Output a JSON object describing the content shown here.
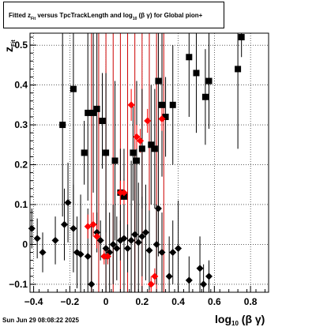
{
  "title": {
    "prefix": "Fitted  z",
    "sub_fit": "Fit",
    "mid": "  versus TpcTrackLength and log",
    "sub_10": "10",
    "suffix": " (β  γ) for Global pion+"
  },
  "date_stamp": "Sun Jun 29 08:08:22 2025",
  "chart_data": {
    "type": "scatter",
    "title": "Fitted z_Fit versus TpcTrackLength and log10(β γ) for Global pion+",
    "xlabel_main": "log",
    "xlabel_sub": "10",
    "xlabel_tail": "(β γ)",
    "ylabel_main": "z",
    "ylabel_sub": "Fit",
    "xlim": [
      -0.42,
      0.9
    ],
    "ylim": [
      -0.12,
      0.53
    ],
    "x_ticks": [
      -0.4,
      -0.2,
      0,
      0.2,
      0.4,
      0.6,
      0.8
    ],
    "x_tick_labels": [
      "−0.4",
      "−0.2",
      "0",
      "0.2",
      "0.4",
      "0.6",
      "0.8"
    ],
    "y_ticks": [
      -0.1,
      0,
      0.1,
      0.2,
      0.3,
      0.4,
      0.5
    ],
    "y_tick_labels": [
      "−0.1",
      "0",
      "0.1",
      "0.2",
      "0.3",
      "0.4",
      "0.5"
    ],
    "grid": true,
    "red_lines_x": [
      -0.08,
      -0.04,
      0.0,
      0.04,
      0.08,
      0.12,
      0.16,
      0.2,
      0.24,
      0.28,
      0.32
    ],
    "series": [
      {
        "marker": "square",
        "color": "#000000",
        "points": [
          [
            -0.24,
            0.3,
            0.23
          ],
          [
            -0.18,
            0.39,
            0.29
          ],
          [
            -0.12,
            0.23,
            0.08
          ],
          [
            -0.1,
            0.33,
            0.22
          ],
          [
            -0.07,
            0.33,
            0.2
          ],
          [
            -0.05,
            0.34,
            0.3
          ],
          [
            -0.02,
            0.31,
            0.12
          ],
          [
            0.0,
            0.23,
            0.2
          ],
          [
            0.05,
            0.21,
            0.2
          ],
          [
            0.08,
            0.13,
            0.11
          ],
          [
            0.1,
            0.12,
            0.12
          ],
          [
            0.15,
            0.23,
            0.12
          ],
          [
            0.17,
            0.21,
            0.2
          ],
          [
            0.2,
            0.24,
            0.15
          ],
          [
            0.25,
            0.25,
            0.15
          ],
          [
            0.27,
            0.24,
            0.15
          ],
          [
            0.29,
            0.41,
            0.2
          ],
          [
            0.31,
            0.35,
            0.18
          ],
          [
            0.33,
            0.32,
            0.1
          ],
          [
            0.37,
            0.35,
            0.15
          ],
          [
            0.46,
            0.47,
            0.15
          ],
          [
            0.5,
            0.43,
            0.15
          ],
          [
            0.55,
            0.37,
            0.12
          ],
          [
            0.57,
            0.41,
            0.12
          ],
          [
            0.73,
            0.44,
            0.2
          ],
          [
            0.75,
            0.52,
            0.05
          ]
        ]
      },
      {
        "marker": "diamond",
        "color": "#000000",
        "points": [
          [
            -0.41,
            0.04,
            0.05
          ],
          [
            -0.38,
            0.015,
            0.05
          ],
          [
            -0.35,
            -0.02,
            0.05
          ],
          [
            -0.28,
            0.01,
            0.06
          ],
          [
            -0.23,
            0.05,
            0.09
          ],
          [
            -0.21,
            0.105,
            0.1
          ],
          [
            -0.18,
            0.04,
            0.11
          ],
          [
            -0.16,
            -0.02,
            0.09
          ],
          [
            -0.14,
            -0.025,
            0.15
          ],
          [
            -0.1,
            -0.03,
            0.12
          ],
          [
            -0.08,
            -0.1,
            0.15
          ],
          [
            -0.05,
            0.03,
            0.05
          ],
          [
            -0.03,
            0.01,
            0.05
          ],
          [
            0.0,
            -0.01,
            0.12
          ],
          [
            0.02,
            -0.02,
            0.1
          ],
          [
            0.04,
            0.0,
            0.1
          ],
          [
            0.06,
            -0.01,
            0.08
          ],
          [
            0.08,
            0.01,
            0.05
          ],
          [
            0.1,
            0.015,
            0.15
          ],
          [
            0.12,
            -0.01,
            0.06
          ],
          [
            0.14,
            0.01,
            0.2
          ],
          [
            0.16,
            0.025,
            0.2
          ],
          [
            0.18,
            0.005,
            0.15
          ],
          [
            0.2,
            0.02,
            0.1
          ],
          [
            0.22,
            0.03,
            0.12
          ],
          [
            0.24,
            -0.015,
            0.1
          ],
          [
            0.28,
            0.0,
            0.1
          ],
          [
            0.29,
            0.09,
            0.12
          ],
          [
            0.31,
            -0.02,
            0.1
          ],
          [
            0.35,
            -0.08,
            0.1
          ],
          [
            0.37,
            -0.02,
            0.08
          ],
          [
            0.4,
            -0.01,
            0.12
          ],
          [
            0.46,
            -0.09,
            0.06
          ],
          [
            0.52,
            -0.06,
            0.08
          ],
          [
            0.54,
            -0.1,
            0.05
          ],
          [
            0.57,
            -0.08,
            0.04
          ]
        ]
      },
      {
        "marker": "diamond",
        "color": "#ff0000",
        "points": [
          [
            -0.1,
            0.045,
            0.03
          ],
          [
            -0.07,
            0.05,
            0.03
          ],
          [
            -0.05,
            0.02,
            0.03
          ],
          [
            -0.01,
            -0.03,
            0.02
          ],
          [
            0.01,
            -0.03,
            0.02
          ],
          [
            0.08,
            0.13,
            0.03
          ],
          [
            0.1,
            0.13,
            0.03
          ],
          [
            0.14,
            0.35,
            0.04
          ],
          [
            0.17,
            0.27,
            0.03
          ],
          [
            0.19,
            0.26,
            0.03
          ],
          [
            0.23,
            0.31,
            0.03
          ],
          [
            0.25,
            -0.1,
            0.02
          ],
          [
            0.27,
            -0.08,
            0.02
          ],
          [
            0.31,
            0.315,
            0.03
          ]
        ]
      }
    ]
  }
}
